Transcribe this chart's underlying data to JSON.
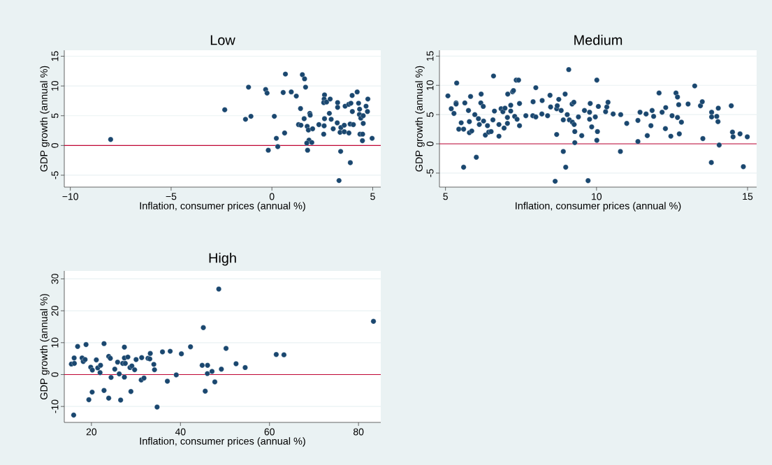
{
  "chart_data": [
    {
      "type": "scatter",
      "title": "Low",
      "xlabel": "Inflation, consumer prices (annual %)",
      "ylabel": "GDP growth (annual %)",
      "color": "#1a476f",
      "marker": "circle",
      "grid": "y",
      "xlim": [
        -10.3,
        5.4
      ],
      "ylim": [
        -7,
        16
      ],
      "xticks": [
        {
          "value": -10,
          "label": "−10"
        },
        {
          "value": -5,
          "label": "−5"
        },
        0,
        5
      ],
      "yticks": [
        -5,
        0,
        5,
        10,
        15
      ],
      "ref_lines": [
        {
          "axis": "y",
          "value": 0,
          "color": "#c10534"
        }
      ],
      "x": [
        -8.0,
        -2.34,
        -1.16,
        -1.31,
        -1.04,
        -0.31,
        -0.24,
        -0.18,
        0.12,
        0.22,
        0.29,
        0.56,
        0.63,
        0.67,
        0.96,
        1.21,
        1.42,
        1.32,
        1.44,
        1.51,
        1.62,
        1.67,
        1.6,
        1.75,
        1.88,
        1.9,
        1.81,
        2.02,
        1.84,
        1.73,
        1.98,
        1.77,
        2.33,
        2.57,
        2.59,
        2.61,
        2.61,
        2.59,
        2.57,
        2.71,
        2.89,
        2.85,
        2.94,
        3.04,
        3.26,
        3.26,
        3.24,
        3.42,
        3.38,
        3.59,
        3.59,
        3.41,
        3.63,
        3.81,
        3.92,
        3.82,
        3.88,
        4.04,
        3.99,
        3.89,
        3.33,
        3.98,
        4.23,
        4.3,
        4.35,
        4.34,
        4.41,
        4.53,
        4.53,
        4.37,
        4.5,
        4.49,
        4.67,
        4.74,
        4.76,
        4.97
      ],
      "values": [
        1.0,
        6.0,
        9.8,
        4.4,
        4.9,
        9.4,
        8.8,
        -0.8,
        4.9,
        1.2,
        -0.2,
        8.9,
        2.1,
        12.0,
        9.0,
        8.3,
        6.2,
        3.5,
        3.4,
        11.9,
        11.2,
        9.8,
        4.5,
        3.2,
        5.4,
        5.1,
        2.6,
        2.8,
        0.9,
        0.4,
        0.5,
        -0.8,
        3.5,
        1.9,
        3.3,
        4.5,
        8.5,
        7.8,
        7.2,
        7.3,
        7.8,
        5.4,
        4.4,
        2.8,
        7.2,
        6.4,
        3.8,
        3.0,
        2.2,
        3.4,
        2.3,
        -1.0,
        6.6,
        6.9,
        7.1,
        2.1,
        3.6,
        3.5,
        5.7,
        -2.9,
        -5.9,
        8.4,
        9.0,
        7.1,
        6.1,
        5.2,
        4.6,
        5.0,
        3.7,
        1.9,
        1.9,
        0.8,
        6.6,
        5.7,
        7.8,
        1.2
      ]
    },
    {
      "type": "scatter",
      "title": "Medium",
      "xlabel": "Inflation, consumer prices (annual %)",
      "ylabel": "GDP growth (annual %)",
      "color": "#1a476f",
      "marker": "circle",
      "grid": "y",
      "xlim": [
        4.8,
        15.3
      ],
      "ylim": [
        -7.4,
        16
      ],
      "xticks": [
        5,
        10,
        15
      ],
      "yticks": [
        -5,
        0,
        5,
        10,
        15
      ],
      "ref_lines": [
        {
          "axis": "y",
          "value": 0,
          "color": "#c10534"
        }
      ],
      "x": [
        5.08,
        5.19,
        5.28,
        5.37,
        5.35,
        5.35,
        5.52,
        5.44,
        5.6,
        5.6,
        5.64,
        5.76,
        5.79,
        5.79,
        5.83,
        5.87,
        5.97,
        6.02,
        6.09,
        6.12,
        6.18,
        6.17,
        6.25,
        6.26,
        6.32,
        6.39,
        6.43,
        6.51,
        6.59,
        6.57,
        6.62,
        6.77,
        6.77,
        6.84,
        6.9,
        6.94,
        6.97,
        7.05,
        7.05,
        7.06,
        7.16,
        7.16,
        7.22,
        7.25,
        7.29,
        7.37,
        7.34,
        7.42,
        7.45,
        7.45,
        7.66,
        7.9,
        7.89,
        7.99,
        7.99,
        8.2,
        8.19,
        8.38,
        8.46,
        8.48,
        8.68,
        8.63,
        8.68,
        8.7,
        8.75,
        8.83,
        8.9,
        8.9,
        8.96,
        8.98,
        9.03,
        9.08,
        9.1,
        9.19,
        9.25,
        9.2,
        9.26,
        9.28,
        9.28,
        9.4,
        9.51,
        9.6,
        9.72,
        9.77,
        9.77,
        9.79,
        9.84,
        9.96,
        10.01,
        10.03,
        10.01,
        10.06,
        10.3,
        10.34,
        10.38,
        10.55,
        10.79,
        10.8,
        11.0,
        11.37,
        11.37,
        11.44,
        11.64,
        11.68,
        11.8,
        11.84,
        11.89,
        12.07,
        12.17,
        12.28,
        12.29,
        12.46,
        12.5,
        12.63,
        12.68,
        12.72,
        12.68,
        12.74,
        12.81,
        13.03,
        13.25,
        13.44,
        13.5,
        13.52,
        13.8,
        13.81,
        13.81,
        13.98,
        14.02,
        14.03,
        14.06,
        14.46,
        14.5,
        14.52,
        14.75,
        14.86,
        14.99
      ],
      "values": [
        8.2,
        6.0,
        5.2,
        10.4,
        7.0,
        6.8,
        3.6,
        2.5,
        2.5,
        -4.0,
        7.0,
        5.7,
        3.8,
        1.9,
        8.1,
        2.2,
        5.0,
        -2.3,
        4.3,
        3.3,
        8.5,
        7.0,
        6.4,
        3.9,
        1.5,
        3.1,
        2.0,
        2.1,
        11.6,
        4.1,
        5.6,
        3.3,
        1.3,
        6.0,
        5.5,
        2.7,
        6.1,
        4.5,
        3.5,
        8.5,
        6.6,
        5.6,
        8.9,
        9.1,
        4.7,
        4.2,
        10.9,
        10.9,
        6.9,
        3.1,
        4.8,
        7.2,
        4.8,
        4.6,
        9.6,
        7.4,
        5.1,
        4.8,
        8.3,
        6.3,
        1.6,
        -6.4,
        6.0,
        6.5,
        7.6,
        5.7,
        -1.3,
        4.1,
        8.5,
        -4.0,
        5.0,
        12.7,
        4.1,
        6.8,
        7.1,
        3.7,
        3.3,
        2.1,
        0.2,
        4.6,
        1.4,
        5.7,
        -6.3,
        5.4,
        4.2,
        6.9,
        2.9,
        4.6,
        10.9,
        2.1,
        0.6,
        6.4,
        5.5,
        6.3,
        7.1,
        5.1,
        -1.3,
        5.0,
        3.5,
        0.4,
        4.0,
        5.4,
        5.1,
        1.4,
        3.1,
        5.7,
        4.7,
        8.7,
        5.4,
        2.6,
        6.2,
        1.3,
        4.8,
        8.7,
        8.0,
        6.7,
        4.5,
        1.7,
        3.7,
        6.8,
        9.9,
        6.5,
        7.2,
        0.9,
        -3.2,
        5.4,
        4.6,
        4.7,
        3.8,
        6.1,
        -0.2,
        6.5,
        2.0,
        1.2,
        1.7,
        -3.9,
        1.2
      ]
    },
    {
      "type": "scatter",
      "title": "High",
      "xlabel": "Inflation, consumer prices (annual %)",
      "ylabel": "GDP growth (annual %)",
      "color": "#1a476f",
      "marker": "circle",
      "grid": "y",
      "xlim": [
        13.9,
        85
      ],
      "ylim": [
        -15,
        32.5
      ],
      "xticks": [
        20,
        40,
        60,
        80
      ],
      "yticks": [
        -10,
        0,
        10,
        20,
        30
      ],
      "ref_lines": [
        {
          "axis": "y",
          "value": 0,
          "color": "#c10534"
        }
      ],
      "x": [
        16.01,
        15.49,
        16.17,
        16.12,
        16.9,
        17.9,
        18.16,
        18.58,
        18.79,
        19.42,
        19.84,
        20.21,
        20.16,
        21.1,
        21.42,
        22.05,
        21.94,
        22.83,
        22.83,
        23.88,
        24.25,
        24.41,
        23.88,
        25.25,
        25.88,
        26.25,
        26.56,
        27.03,
        27.4,
        27.4,
        27.61,
        27.4,
        28.19,
        28.66,
        29.08,
        28.87,
        29.71,
        30.03,
        31.18,
        31.81,
        31.29,
        32.7,
        33.12,
        33.22,
        34.02,
        34.17,
        34.75,
        35.96,
        37.06,
        37.69,
        39.06,
        40.21,
        42.26,
        45.14,
        44.88,
        46.09,
        45.56,
        46.04,
        47.09,
        47.72,
        48.61,
        49.19,
        50.24,
        52.49,
        54.54,
        61.52,
        63.25,
        83.36
      ],
      "values": [
        -12.7,
        3.3,
        3.5,
        5.2,
        8.8,
        5.2,
        4.1,
        4.7,
        9.4,
        -7.9,
        2.3,
        1.4,
        -5.5,
        4.6,
        2.1,
        2.9,
        0.6,
        9.7,
        -5.0,
        5.7,
        5.1,
        -0.9,
        -7.4,
        1.7,
        3.9,
        0.2,
        -8.0,
        3.5,
        5.2,
        8.6,
        3.5,
        -0.8,
        5.5,
        2.2,
        2.7,
        -5.3,
        1.5,
        4.7,
        -1.7,
        -1.1,
        5.3,
        5.1,
        4.9,
        6.6,
        3.2,
        1.5,
        -10.2,
        7.1,
        -2.1,
        7.3,
        -0.1,
        6.5,
        8.7,
        14.7,
        2.9,
        2.9,
        -5.2,
        0.3,
        1.0,
        -2.3,
        26.8,
        1.7,
        8.2,
        3.4,
        2.2,
        6.3,
        6.2,
        16.7
      ]
    }
  ]
}
